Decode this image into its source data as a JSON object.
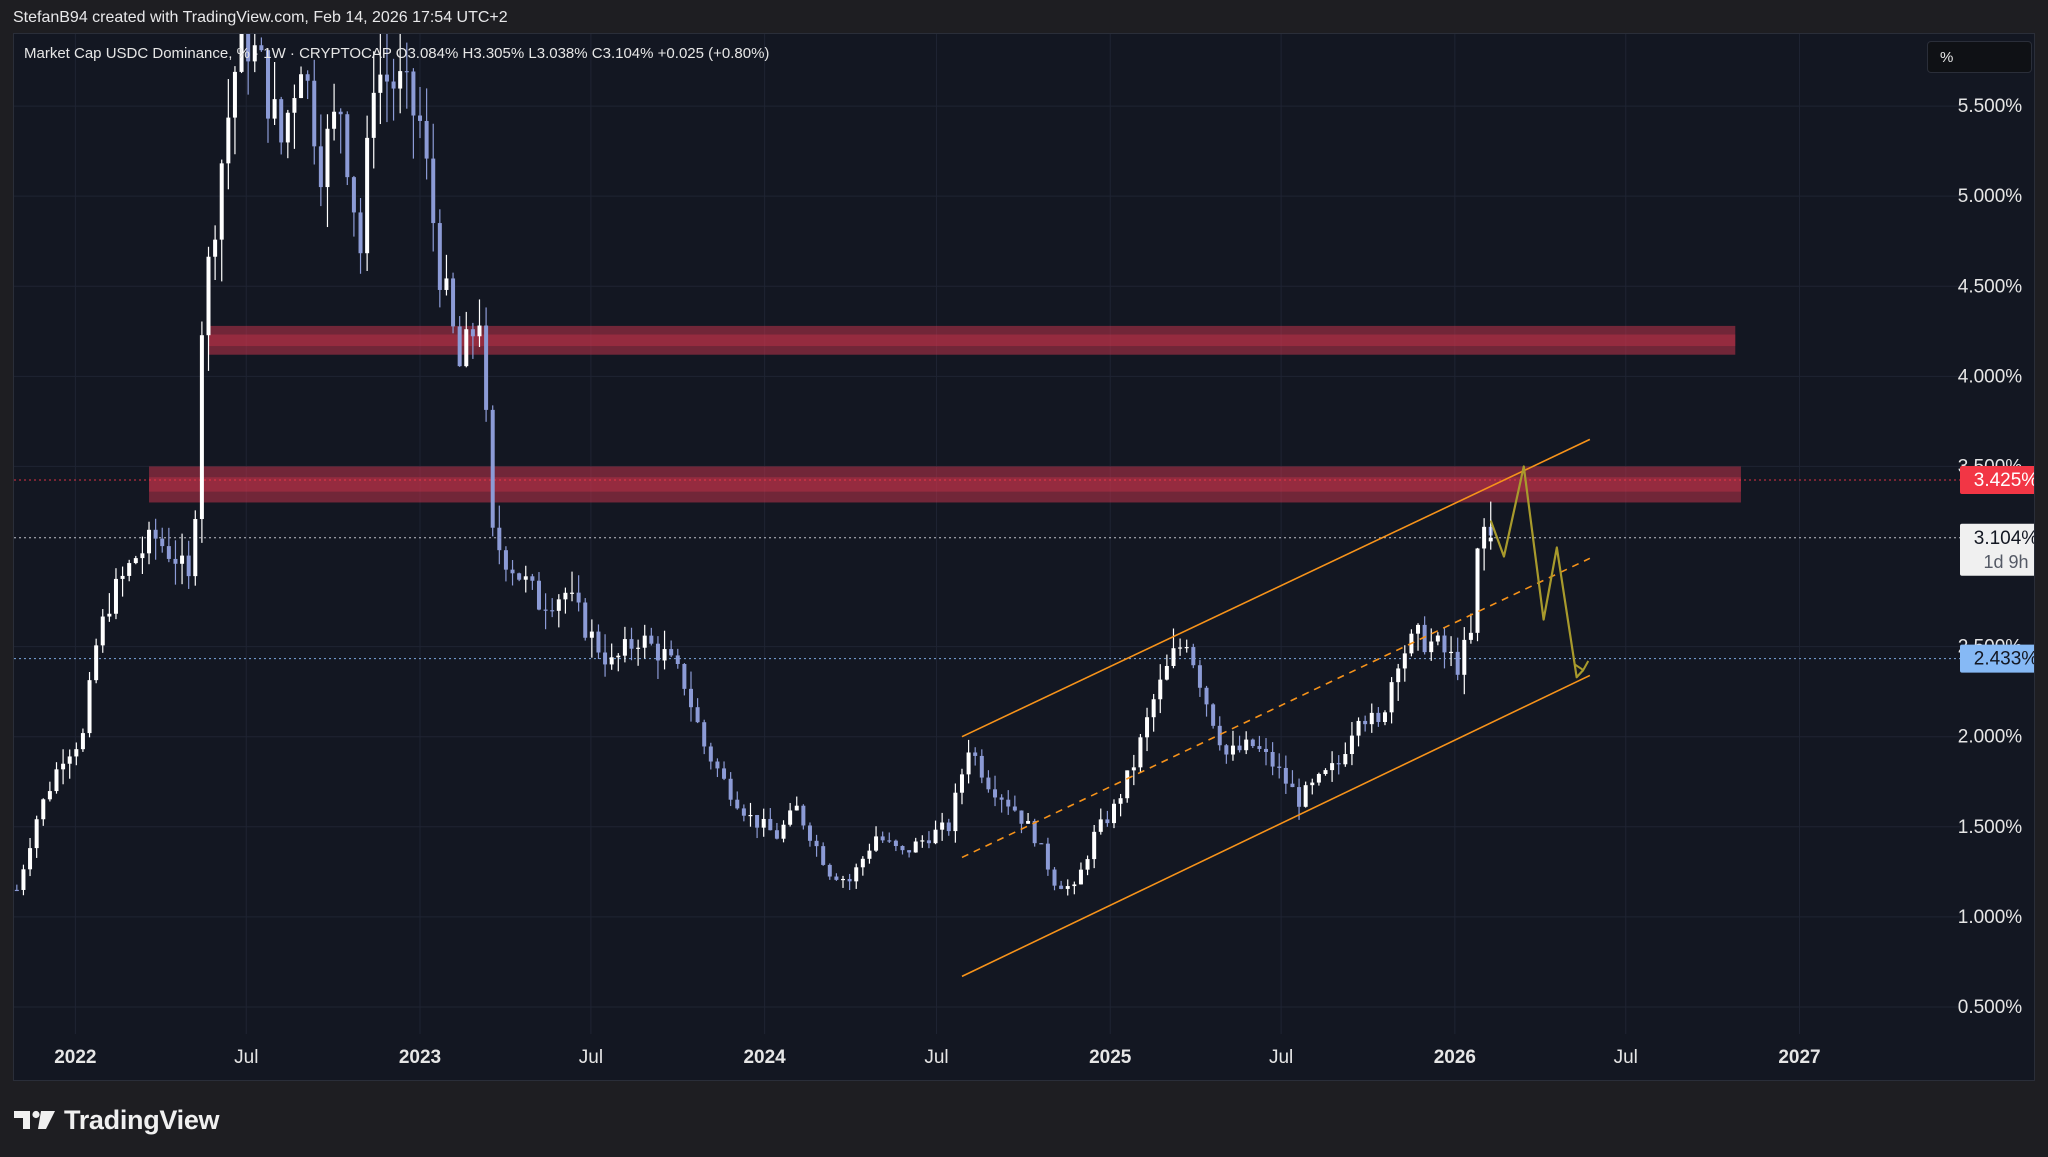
{
  "attribution": "StefanB94 created with TradingView.com, Feb 14, 2026 17:54 UTC+2",
  "legend": {
    "symbol_line": "Market Cap USDC Dominance, % · 1W · CRYPTOCAP",
    "open": "O3.084%",
    "high": "H3.305%",
    "low": "L3.038%",
    "close": "C3.104%",
    "change": "+0.025 (+0.80%)"
  },
  "scale_button": "%",
  "footer_brand": "TradingView",
  "colors": {
    "background": "#131722",
    "grid": "#1f2433",
    "candle_up": "#ffffff",
    "candle_down": "#8c9bd6",
    "resistance_zone": "#c0334a",
    "channel": "#f7931a",
    "projection": "#a89a2c",
    "price_badge_red": "#f23645",
    "price_badge_blue": "#86b9f5",
    "price_badge_white": "#f0f0f0"
  },
  "chart_data": {
    "type": "candlestick",
    "title": "Market Cap USDC Dominance, %",
    "interval": "1W",
    "source": "CRYPTOCAP",
    "y_axis": {
      "unit": "%",
      "range": [
        0.35,
        5.9
      ],
      "ticks": [
        "5.500%",
        "5.000%",
        "4.500%",
        "4.000%",
        "3.500%",
        "2.500%",
        "2.000%",
        "1.500%",
        "1.000%",
        "0.500%"
      ],
      "tick_values": [
        5.5,
        5.0,
        4.5,
        4.0,
        3.5,
        2.5,
        2.0,
        1.5,
        1.0,
        0.5
      ]
    },
    "x_axis": {
      "range": [
        "2021-10-28",
        "2027-06-20"
      ],
      "ticks": [
        {
          "label": "2022",
          "date": "2022-01-01",
          "bold": true
        },
        {
          "label": "Jul",
          "date": "2022-07-01",
          "bold": false
        },
        {
          "label": "2023",
          "date": "2023-01-01",
          "bold": true
        },
        {
          "label": "Jul",
          "date": "2023-07-01",
          "bold": false
        },
        {
          "label": "2024",
          "date": "2024-01-01",
          "bold": true
        },
        {
          "label": "Jul",
          "date": "2024-07-01",
          "bold": false
        },
        {
          "label": "2025",
          "date": "2025-01-01",
          "bold": true
        },
        {
          "label": "Jul",
          "date": "2025-07-01",
          "bold": false
        },
        {
          "label": "2026",
          "date": "2026-01-01",
          "bold": true
        },
        {
          "label": "Jul",
          "date": "2026-07-01",
          "bold": false
        },
        {
          "label": "2027",
          "date": "2027-01-01",
          "bold": true
        }
      ]
    },
    "grid": true,
    "price_path": [
      [
        "2021-10-31",
        1.15
      ],
      [
        "2021-11-21",
        1.55
      ],
      [
        "2021-12-19",
        1.9
      ],
      [
        "2022-01-09",
        2.0
      ],
      [
        "2022-01-23",
        2.5
      ],
      [
        "2022-02-06",
        2.75
      ],
      [
        "2022-03-06",
        3.0
      ],
      [
        "2022-03-27",
        3.1
      ],
      [
        "2022-04-17",
        3.0
      ],
      [
        "2022-05-01",
        2.85
      ],
      [
        "2022-05-08",
        3.3
      ],
      [
        "2022-05-15",
        4.3
      ],
      [
        "2022-06-05",
        5.2
      ],
      [
        "2022-06-26",
        5.95
      ],
      [
        "2022-07-17",
        5.7
      ],
      [
        "2022-08-07",
        5.3
      ],
      [
        "2022-08-28",
        5.8
      ],
      [
        "2022-09-18",
        5.2
      ],
      [
        "2022-10-09",
        5.5
      ],
      [
        "2022-10-30",
        4.7
      ],
      [
        "2022-11-13",
        5.7
      ],
      [
        "2022-12-11",
        5.6
      ],
      [
        "2023-01-01",
        5.4
      ],
      [
        "2023-01-22",
        4.6
      ],
      [
        "2023-02-12",
        4.05
      ],
      [
        "2023-03-05",
        4.35
      ],
      [
        "2023-03-19",
        3.1
      ],
      [
        "2023-04-09",
        2.95
      ],
      [
        "2023-05-07",
        2.75
      ],
      [
        "2023-06-04",
        2.8
      ],
      [
        "2023-07-02",
        2.55
      ],
      [
        "2023-07-23",
        2.4
      ],
      [
        "2023-08-20",
        2.55
      ],
      [
        "2023-09-17",
        2.45
      ],
      [
        "2023-10-08",
        2.3
      ],
      [
        "2023-10-29",
        1.95
      ],
      [
        "2023-11-19",
        1.75
      ],
      [
        "2023-12-17",
        1.55
      ],
      [
        "2024-01-14",
        1.45
      ],
      [
        "2024-02-04",
        1.6
      ],
      [
        "2024-03-10",
        1.25
      ],
      [
        "2024-03-31",
        1.2
      ],
      [
        "2024-04-28",
        1.45
      ],
      [
        "2024-05-26",
        1.35
      ],
      [
        "2024-06-23",
        1.45
      ],
      [
        "2024-07-14",
        1.5
      ],
      [
        "2024-08-04",
        1.95
      ],
      [
        "2024-08-25",
        1.75
      ],
      [
        "2024-09-22",
        1.6
      ],
      [
        "2024-10-13",
        1.45
      ],
      [
        "2024-11-03",
        1.2
      ],
      [
        "2024-11-24",
        1.15
      ],
      [
        "2024-12-15",
        1.45
      ],
      [
        "2025-01-05",
        1.6
      ],
      [
        "2025-01-26",
        1.85
      ],
      [
        "2025-02-16",
        2.2
      ],
      [
        "2025-03-09",
        2.45
      ],
      [
        "2025-03-23",
        2.55
      ],
      [
        "2025-04-13",
        2.2
      ],
      [
        "2025-05-04",
        1.9
      ],
      [
        "2025-06-01",
        1.95
      ],
      [
        "2025-06-22",
        1.85
      ],
      [
        "2025-07-20",
        1.65
      ],
      [
        "2025-08-10",
        1.75
      ],
      [
        "2025-08-31",
        1.85
      ],
      [
        "2025-09-21",
        2.15
      ],
      [
        "2025-10-12",
        2.05
      ],
      [
        "2025-11-02",
        2.45
      ],
      [
        "2025-11-23",
        2.55
      ],
      [
        "2025-12-14",
        2.5
      ],
      [
        "2026-01-04",
        2.4
      ],
      [
        "2026-01-18",
        2.55
      ],
      [
        "2026-01-25",
        3.0
      ],
      [
        "2026-02-01",
        3.15
      ],
      [
        "2026-02-08",
        3.104
      ]
    ],
    "candles_last": {
      "open": 3.084,
      "high": 3.305,
      "low": 3.038,
      "close": 3.104
    },
    "zones": [
      {
        "label": "resistance",
        "from": 4.12,
        "to": 4.28,
        "start": "2022-05-22",
        "end": "2026-10-25"
      },
      {
        "label": "resistance",
        "from": 3.3,
        "to": 3.5,
        "start": "2022-03-20",
        "end": "2026-10-31"
      }
    ],
    "channel": {
      "upper": [
        [
          "2024-07-28",
          2.0
        ],
        [
          "2026-05-24",
          3.65
        ]
      ],
      "lower": [
        [
          "2024-07-28",
          0.67
        ],
        [
          "2026-05-24",
          2.34
        ]
      ],
      "mid": [
        [
          "2024-07-28",
          1.33
        ],
        [
          "2026-05-24",
          2.99
        ]
      ]
    },
    "projection_path": [
      [
        "2026-02-08",
        3.2
      ],
      [
        "2026-02-22",
        3.0
      ],
      [
        "2026-03-15",
        3.5
      ],
      [
        "2026-04-05",
        2.65
      ],
      [
        "2026-04-19",
        3.05
      ],
      [
        "2026-05-10",
        2.33
      ],
      [
        "2026-05-17",
        2.37
      ]
    ],
    "horizontal_lines": [
      {
        "value": 3.425,
        "label": "3.425%",
        "style": "dotted",
        "color": "#f23645"
      },
      {
        "value": 3.104,
        "label": "3.104%",
        "sublabel": "1d 9h",
        "style": "dotted",
        "color": "#d1d4dc"
      },
      {
        "value": 2.433,
        "label": "2.433%",
        "style": "dotted",
        "color": "#86b9f5"
      }
    ]
  }
}
